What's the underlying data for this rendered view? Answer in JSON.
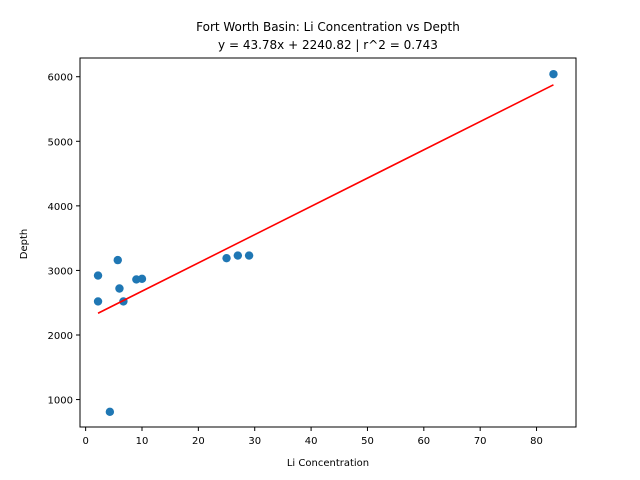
{
  "chart_data": {
    "type": "scatter",
    "title": "Fort Worth Basin: Li Concentration vs Depth",
    "subtitle": "y = 43.78x + 2240.82 | r^2 = 0.743",
    "xlabel": "Li Concentration",
    "ylabel": "Depth",
    "xlim": [
      -1.0,
      87.0
    ],
    "ylim": [
      575,
      6290
    ],
    "xticks": [
      0,
      10,
      20,
      30,
      40,
      50,
      60,
      70,
      80
    ],
    "yticks": [
      1000,
      2000,
      3000,
      4000,
      5000,
      6000
    ],
    "grid": false,
    "series": [
      {
        "kind": "scatter",
        "color": "#1f77b4",
        "points": [
          {
            "x": 2.2,
            "y": 2920
          },
          {
            "x": 2.2,
            "y": 2520
          },
          {
            "x": 4.3,
            "y": 810
          },
          {
            "x": 5.7,
            "y": 3160
          },
          {
            "x": 6.0,
            "y": 2720
          },
          {
            "x": 6.7,
            "y": 2520
          },
          {
            "x": 9.0,
            "y": 2860
          },
          {
            "x": 10.0,
            "y": 2870
          },
          {
            "x": 25.0,
            "y": 3190
          },
          {
            "x": 27.0,
            "y": 3230
          },
          {
            "x": 29.0,
            "y": 3230
          },
          {
            "x": 83.0,
            "y": 6040
          }
        ]
      },
      {
        "kind": "line",
        "color": "#ff0000",
        "slope": 43.78,
        "intercept": 2240.82,
        "x_range": [
          2.2,
          83.0
        ]
      }
    ]
  }
}
